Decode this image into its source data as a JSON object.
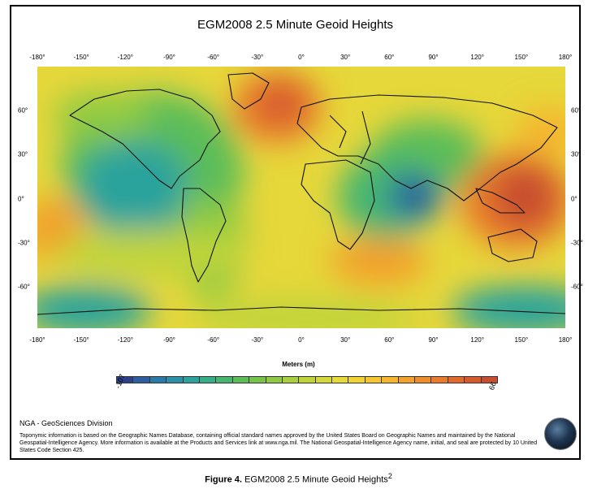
{
  "title": "EGM2008 2.5 Minute Geoid Heights",
  "lon_ticks": [
    "-180°",
    "-150°",
    "-120°",
    "-90°",
    "-60°",
    "-30°",
    "0°",
    "30°",
    "60°",
    "90°",
    "120°",
    "150°",
    "180°"
  ],
  "lat_ticks": [
    "60°",
    "30°",
    "0°",
    "-30°",
    "-60°"
  ],
  "legend": {
    "units": "Meters (m)",
    "min": "-107",
    "max": "66",
    "colors": [
      "#2c3f8c",
      "#2b5fa0",
      "#2a7aa8",
      "#2a90a6",
      "#2ba39c",
      "#35ae85",
      "#46b66e",
      "#5cbd58",
      "#75c44a",
      "#8fca42",
      "#a8cf3e",
      "#c0d43a",
      "#d6d838",
      "#e8da35",
      "#f2d332",
      "#f5c62f",
      "#f5b52d",
      "#f2a22b",
      "#ee8e2a",
      "#e97b2a",
      "#e0692b",
      "#d55a2d",
      "#c84d2f"
    ]
  },
  "map": {
    "colors": {
      "low": "#2c3f8c",
      "mid": "#5cbd58",
      "high": "#d24d25",
      "ocean_yellow": "#e9d93a"
    }
  },
  "footer": {
    "division": "NGA - GeoSciences Division",
    "notice": "Toponymic information is based on the Geographic Names Database, containing official standard names approved by the United States Board on Geographic Names and maintained by the National Geospatial-Intelligence Agency. More information is available at the Products and Services link at www.nga.mil. The National Geospatial-Intelligence Agency name, initial, and seal are protected by 10 United States Code Section 425."
  },
  "caption": {
    "label": "Figure 4.",
    "text": "EGM2008 2.5 Minute Geoid Heights",
    "sup": "2"
  }
}
